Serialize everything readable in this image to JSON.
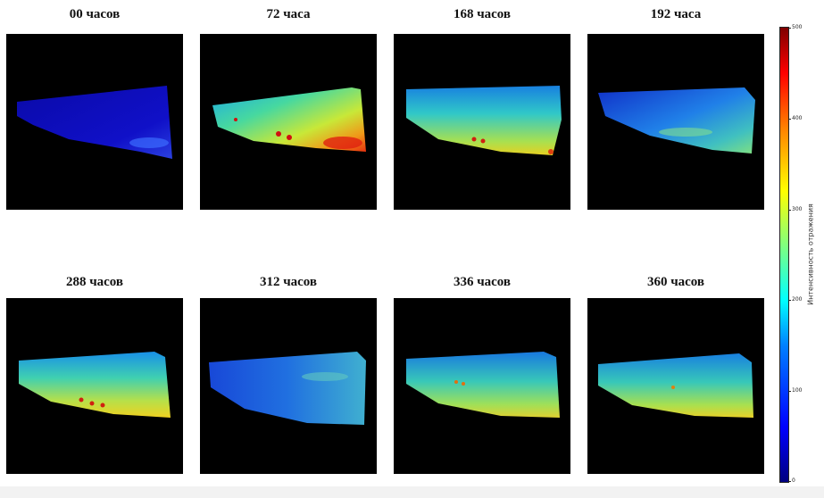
{
  "panels": [
    {
      "title": "00 часов",
      "level": 0.08
    },
    {
      "title": "72 часа",
      "level": 0.55
    },
    {
      "title": "168 часов",
      "level": 0.42
    },
    {
      "title": "192 часа",
      "level": 0.3
    },
    {
      "title": "288 часов",
      "level": 0.45
    },
    {
      "title": "312 часов",
      "level": 0.25
    },
    {
      "title": "336 часов",
      "level": 0.38
    },
    {
      "title": "360 часов",
      "level": 0.38
    }
  ],
  "colorbar": {
    "label": "Интенсивность отражения",
    "ticks": [
      "500",
      "400",
      "300",
      "200",
      "100",
      "0"
    ],
    "min": 0,
    "max": 500,
    "colormap": "jet"
  }
}
